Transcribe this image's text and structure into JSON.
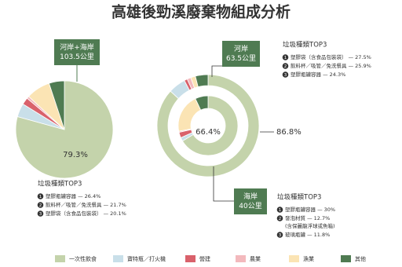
{
  "title": "高雄後勁溪廢棄物組成分析",
  "chart_data": [
    {
      "type": "pie",
      "label_lines": [
        "河岸+海岸",
        "103.5公里"
      ],
      "categories": [
        "一次性飲食",
        "寶特瓶／打火機",
        "營建",
        "農業",
        "漁業",
        "其他"
      ],
      "colors": [
        "#c4d3ab",
        "#c9dfe9",
        "#d9616b",
        "#f3b9bd",
        "#fbe4b4",
        "#4f7b52"
      ],
      "values": [
        79.3,
        4.5,
        2.3,
        0.8,
        8,
        5.1
      ],
      "value_labels": [
        "79.3%",
        null,
        null,
        null,
        null,
        null
      ],
      "top3": {
        "title": "垃圾種類TOP3",
        "items": [
          {
            "rank": 1,
            "text": "塑膠瓶罐容器 — 26.4%"
          },
          {
            "rank": 2,
            "text": "飲料杯／吸管／免洗餐具 — 21.7%"
          },
          {
            "rank": 3,
            "text": "塑膠袋（含食品包裝袋） — 20.1%"
          }
        ]
      }
    },
    {
      "type": "donut",
      "categories": [
        "一次性飲食",
        "寶特瓶／打火機",
        "營建",
        "農業",
        "漁業",
        "其他"
      ],
      "colors": [
        "#c4d3ab",
        "#c9dfe9",
        "#d9616b",
        "#f3b9bd",
        "#fbe4b4",
        "#4f7b52"
      ],
      "series": [
        {
          "name": "河岸",
          "distance": "63.5公里",
          "values": [
            86.8,
            5.5,
            1,
            1.2,
            1.5,
            4
          ],
          "value_labels": [
            "86.8%",
            null,
            null,
            null,
            null,
            null
          ],
          "top3": {
            "title": "垃圾種類TOP3",
            "items": [
              {
                "rank": 1,
                "text": "塑膠袋（含食品包裝袋） — 27.5%"
              },
              {
                "rank": 2,
                "text": "飲料杯／吸管／免洗餐具 — 25.9%"
              },
              {
                "rank": 3,
                "text": "塑膠瓶罐容器 — 24.3%"
              }
            ]
          }
        },
        {
          "name": "海岸",
          "distance": "40公里",
          "values": [
            66.4,
            2,
            3,
            0.6,
            21,
            7
          ],
          "value_labels": [
            "66.4%",
            null,
            null,
            null,
            null,
            null
          ],
          "top3": {
            "title": "垃圾種類TOP3",
            "items": [
              {
                "rank": 1,
                "text": "塑膠瓶罐容器 — 30%"
              },
              {
                "rank": 2,
                "text": "發泡材質 — 12.7%",
                "note": "(含保麗龍浮球或魚箱)"
              },
              {
                "rank": 3,
                "text": "玻璃瓶罐 — 11.8%"
              }
            ]
          }
        }
      ]
    }
  ]
}
